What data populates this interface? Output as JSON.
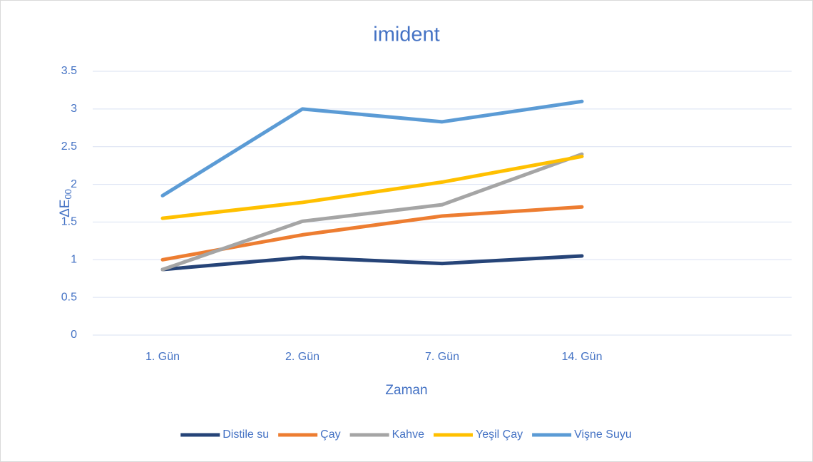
{
  "chart_data": {
    "type": "line",
    "title": "imident",
    "xlabel": "Zaman",
    "ylabel": "ΔE",
    "ylabel_subscript": "00",
    "categories": [
      "1. Gün",
      "2. Gün",
      "7. Gün",
      "14. Gün",
      null
    ],
    "series": [
      {
        "name": "Distile su",
        "color": "#264478",
        "values": [
          0.87,
          1.03,
          0.95,
          1.05,
          null
        ]
      },
      {
        "name": "Çay",
        "color": "#ed7d31",
        "values": [
          1.0,
          1.33,
          1.58,
          1.7,
          null
        ]
      },
      {
        "name": "Kahve",
        "color": "#a5a5a5",
        "values": [
          0.87,
          1.51,
          1.73,
          2.4,
          null
        ]
      },
      {
        "name": "Yeşil Çay",
        "color": "#ffc000",
        "values": [
          1.55,
          1.76,
          2.03,
          2.37,
          null
        ]
      },
      {
        "name": "Vişne Suyu",
        "color": "#5b9bd5",
        "values": [
          1.85,
          3.0,
          2.83,
          3.1,
          null
        ]
      }
    ],
    "ylim": [
      0,
      3.5
    ],
    "yticks": [
      0,
      0.5,
      1,
      1.5,
      2,
      2.5,
      3,
      3.5
    ],
    "grid": true,
    "legend": "bottom"
  }
}
